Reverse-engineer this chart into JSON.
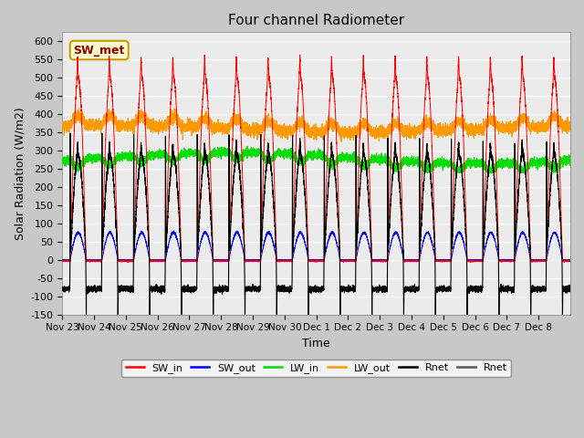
{
  "title": "Four channel Radiometer",
  "xlabel": "Time",
  "ylabel": "Solar Radiation (W/m2)",
  "ylim": [
    -150,
    625
  ],
  "yticks": [
    -150,
    -100,
    -50,
    0,
    50,
    100,
    150,
    200,
    250,
    300,
    350,
    400,
    450,
    500,
    550,
    600
  ],
  "fig_bg_color": "#c8c8c8",
  "plot_bg_color": "#ebebeb",
  "annotation_text": "SW_met",
  "annotation_bg": "#ffffcc",
  "annotation_border": "#cc9900",
  "num_days": 16,
  "xtick_labels": [
    "Nov 23",
    "Nov 24",
    "Nov 25",
    "Nov 26",
    "Nov 27",
    "Nov 28",
    "Nov 29",
    "Nov 30",
    "Dec 1",
    "Dec 2",
    "Dec 3",
    "Dec 4",
    "Dec 5",
    "Dec 6",
    "Dec 7",
    "Dec 8"
  ],
  "colors": {
    "SW_in": "#ff0000",
    "SW_out": "#0000ff",
    "LW_in": "#00dd00",
    "LW_out": "#ff9900",
    "Rnet_black": "#000000",
    "Rnet_dark": "#555555"
  },
  "legend_entries": [
    "SW_in",
    "SW_out",
    "LW_in",
    "LW_out",
    "Rnet",
    "Rnet"
  ],
  "legend_colors": [
    "#ff0000",
    "#0000ff",
    "#00dd00",
    "#ff9900",
    "#000000",
    "#555555"
  ]
}
